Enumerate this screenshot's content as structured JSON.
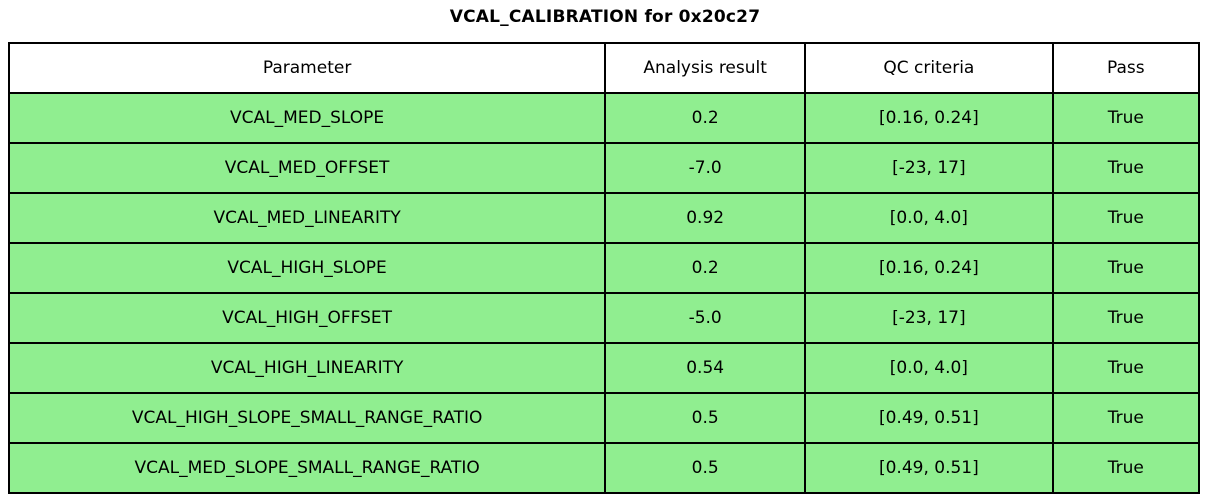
{
  "title": "VCAL_CALIBRATION for 0x20c27",
  "colors": {
    "row_background": "#90ee90",
    "header_background": "#ffffff",
    "border": "#000000",
    "text": "#000000"
  },
  "table": {
    "columns": [
      "Parameter",
      "Analysis result",
      "QC criteria",
      "Pass"
    ],
    "rows": [
      {
        "cells": [
          "VCAL_MED_SLOPE",
          "0.2",
          "[0.16, 0.24]",
          "True"
        ]
      },
      {
        "cells": [
          "VCAL_MED_OFFSET",
          "-7.0",
          "[-23, 17]",
          "True"
        ]
      },
      {
        "cells": [
          "VCAL_MED_LINEARITY",
          "0.92",
          "[0.0, 4.0]",
          "True"
        ]
      },
      {
        "cells": [
          "VCAL_HIGH_SLOPE",
          "0.2",
          "[0.16, 0.24]",
          "True"
        ]
      },
      {
        "cells": [
          "VCAL_HIGH_OFFSET",
          "-5.0",
          "[-23, 17]",
          "True"
        ]
      },
      {
        "cells": [
          "VCAL_HIGH_LINEARITY",
          "0.54",
          "[0.0, 4.0]",
          "True"
        ]
      },
      {
        "cells": [
          "VCAL_HIGH_SLOPE_SMALL_RANGE_RATIO",
          "0.5",
          "[0.49, 0.51]",
          "True"
        ]
      },
      {
        "cells": [
          "VCAL_MED_SLOPE_SMALL_RANGE_RATIO",
          "0.5",
          "[0.49, 0.51]",
          "True"
        ]
      }
    ]
  },
  "chart_data": {
    "type": "table",
    "title": "VCAL_CALIBRATION for 0x20c27",
    "columns": [
      "Parameter",
      "Analysis result",
      "QC criteria",
      "Pass"
    ],
    "rows": [
      [
        "VCAL_MED_SLOPE",
        0.2,
        "[0.16, 0.24]",
        "True"
      ],
      [
        "VCAL_MED_OFFSET",
        -7.0,
        "[-23, 17]",
        "True"
      ],
      [
        "VCAL_MED_LINEARITY",
        0.92,
        "[0.0, 4.0]",
        "True"
      ],
      [
        "VCAL_HIGH_SLOPE",
        0.2,
        "[0.16, 0.24]",
        "True"
      ],
      [
        "VCAL_HIGH_OFFSET",
        -5.0,
        "[-23, 17]",
        "True"
      ],
      [
        "VCAL_HIGH_LINEARITY",
        0.54,
        "[0.0, 4.0]",
        "True"
      ],
      [
        "VCAL_HIGH_SLOPE_SMALL_RANGE_RATIO",
        0.5,
        "[0.49, 0.51]",
        "True"
      ],
      [
        "VCAL_MED_SLOPE_SMALL_RANGE_RATIO",
        0.5,
        "[0.49, 0.51]",
        "True"
      ]
    ],
    "layout_hints": {
      "header_background": "#ffffff",
      "row_background": "#90ee90",
      "all_rows_pass": true
    }
  }
}
